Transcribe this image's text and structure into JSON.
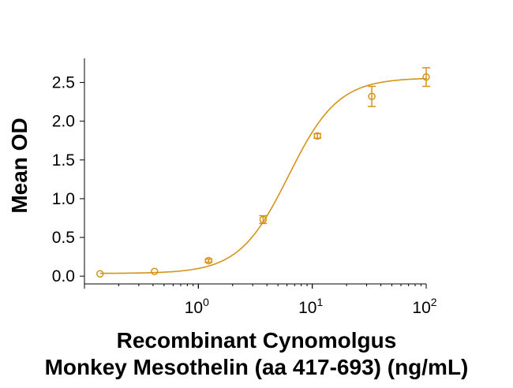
{
  "chart_data": {
    "type": "scatter",
    "xlabel": [
      "Recombinant Cynomolgus",
      "Monkey Mesothelin (aa 417-693) (ng/mL)"
    ],
    "ylabel": "Mean OD",
    "x_scale": "log",
    "xlim": [
      0.1,
      100
    ],
    "ylim": [
      -0.1,
      2.75
    ],
    "x_ticks": [
      {
        "value": 1,
        "base": "10",
        "exp": "0"
      },
      {
        "value": 10,
        "base": "10",
        "exp": "1"
      },
      {
        "value": 100,
        "base": "10",
        "exp": "2"
      }
    ],
    "y_ticks": [
      {
        "value": 0.0,
        "label": "0.0"
      },
      {
        "value": 0.5,
        "label": "0.5"
      },
      {
        "value": 1.0,
        "label": "1.0"
      },
      {
        "value": 1.5,
        "label": "1.5"
      },
      {
        "value": 2.0,
        "label": "2.0"
      },
      {
        "value": 2.5,
        "label": "2.5"
      }
    ],
    "color": "#D4941A",
    "series": [
      {
        "points": [
          {
            "x": 0.137,
            "y": 0.03,
            "err": 0.01
          },
          {
            "x": 0.412,
            "y": 0.06,
            "err": 0.01
          },
          {
            "x": 1.23,
            "y": 0.2,
            "err": 0.02
          },
          {
            "x": 3.7,
            "y": 0.73,
            "err": 0.05
          },
          {
            "x": 11.1,
            "y": 1.81,
            "err": 0.03
          },
          {
            "x": 33.3,
            "y": 2.32,
            "err": 0.13
          },
          {
            "x": 100,
            "y": 2.57,
            "err": 0.12
          }
        ],
        "fit": {
          "model": "4PL",
          "bottom": 0.035,
          "top": 2.56,
          "ec50": 6.2,
          "hill": 2.0
        }
      }
    ]
  }
}
